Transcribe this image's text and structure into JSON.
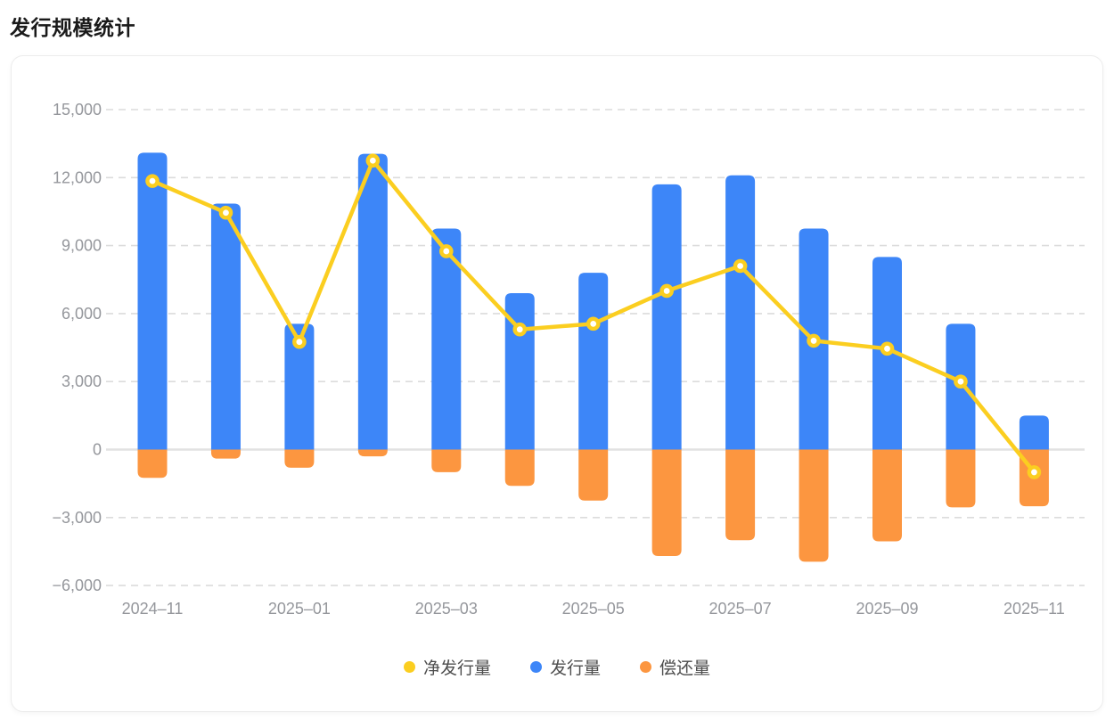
{
  "page": {
    "title": "发行规模统计"
  },
  "chart_data": {
    "type": "bar",
    "subtype": "combo-bar-line",
    "title": "发行规模统计",
    "categories": [
      "2024-11",
      "2024-12",
      "2025-01",
      "2025-02",
      "2025-03",
      "2025-04",
      "2025-05",
      "2025-06",
      "2025-07",
      "2025-08",
      "2025-09",
      "2025-10",
      "2025-11"
    ],
    "series": [
      {
        "name": "净发行量",
        "type": "line",
        "color": "#fbce20",
        "values": [
          11850,
          10450,
          4750,
          12750,
          8750,
          5300,
          5550,
          7000,
          8100,
          4800,
          4450,
          3000,
          -1000
        ]
      },
      {
        "name": "发行量",
        "type": "bar",
        "color": "#3d86f8",
        "values": [
          13100,
          10850,
          5550,
          13050,
          9750,
          6900,
          7800,
          11700,
          12100,
          9750,
          8500,
          5550,
          1500
        ]
      },
      {
        "name": "偿还量",
        "type": "bar",
        "color": "#fc9640",
        "values": [
          -1250,
          -400,
          -800,
          -300,
          -1000,
          -1600,
          -2250,
          -4700,
          -4000,
          -4950,
          -4050,
          -2550,
          -2500
        ]
      }
    ],
    "xlabel": "",
    "ylabel": "",
    "ylim": [
      -6000,
      15000
    ],
    "y_ticks": [
      15000,
      12000,
      9000,
      6000,
      3000,
      0,
      -3000,
      -6000
    ],
    "y_tick_labels": [
      "15,000",
      "12,000",
      "9,000",
      "6,000",
      "3,000",
      "0",
      "−3,000",
      "−6,000"
    ],
    "x_tick_indices": [
      0,
      2,
      4,
      6,
      8,
      10,
      12
    ],
    "x_tick_labels": [
      "2024–11",
      "2025–01",
      "2025–03",
      "2025–05",
      "2025–07",
      "2025–09",
      "2025–11"
    ],
    "grid": "horizontal-dashed",
    "legend_position": "bottom"
  },
  "legend": {
    "items": [
      {
        "label": "净发行量",
        "color": "#fbce20"
      },
      {
        "label": "发行量",
        "color": "#3d86f8"
      },
      {
        "label": "偿还量",
        "color": "#fc9640"
      }
    ]
  }
}
